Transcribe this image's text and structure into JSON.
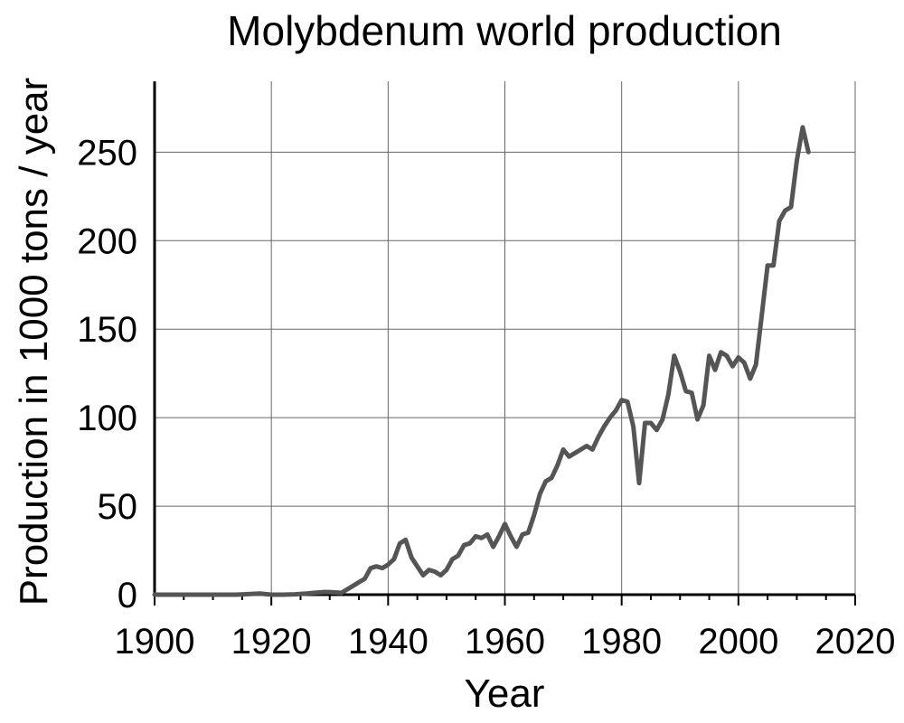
{
  "chart_data": {
    "type": "line",
    "title": "Molybdenum world production",
    "xlabel": "Year",
    "ylabel": "Production in 1000 tons / year",
    "xlim": [
      1900,
      2020
    ],
    "ylim": [
      0,
      290
    ],
    "xticks": [
      1900,
      1920,
      1940,
      1960,
      1980,
      2000,
      2020
    ],
    "yticks": [
      0,
      50,
      100,
      150,
      200,
      250
    ],
    "grid": true,
    "line_color": "#555555",
    "series": [
      {
        "x": [
          1900,
          1902,
          1904,
          1906,
          1908,
          1910,
          1912,
          1914,
          1916,
          1918,
          1920,
          1922,
          1924,
          1926,
          1928,
          1929,
          1930,
          1932,
          1933,
          1934,
          1935,
          1936,
          1937,
          1938,
          1939,
          1940,
          1941,
          1942,
          1943,
          1944,
          1945,
          1946,
          1947,
          1948,
          1949,
          1950,
          1951,
          1952,
          1953,
          1954,
          1955,
          1956,
          1957,
          1958,
          1959,
          1960,
          1961,
          1962,
          1963,
          1964,
          1965,
          1966,
          1967,
          1968,
          1969,
          1970,
          1971,
          1972,
          1973,
          1974,
          1975,
          1976,
          1977,
          1978,
          1979,
          1980,
          1981,
          1982,
          1983,
          1984,
          1985,
          1986,
          1987,
          1988,
          1989,
          1990,
          1991,
          1992,
          1993,
          1994,
          1995,
          1996,
          1997,
          1998,
          1999,
          2000,
          2001,
          2002,
          2003,
          2004,
          2005,
          2006,
          2007,
          2008,
          2009,
          2010,
          2011,
          2012
        ],
        "y": [
          0,
          0,
          0,
          0,
          0,
          0,
          0,
          0,
          0.3,
          0.6,
          0,
          0,
          0.2,
          0.6,
          1.2,
          1.5,
          1.5,
          1,
          3,
          5,
          7,
          9,
          15,
          16,
          15,
          17,
          20,
          29,
          31,
          21,
          16,
          11,
          14,
          13,
          11,
          14,
          20,
          22,
          28,
          29,
          33,
          32,
          34,
          27,
          33,
          40,
          33,
          27,
          34,
          35,
          45,
          57,
          64,
          66,
          73,
          82,
          78,
          80,
          82,
          84,
          82,
          89,
          95,
          100,
          104,
          110,
          109,
          95,
          63,
          97,
          97,
          93,
          99,
          113,
          135,
          126,
          115,
          114,
          99,
          107,
          135,
          127,
          137,
          135,
          129,
          134,
          131,
          122,
          130,
          158,
          186,
          186,
          211,
          217,
          219,
          245,
          264,
          250
        ]
      }
    ]
  }
}
